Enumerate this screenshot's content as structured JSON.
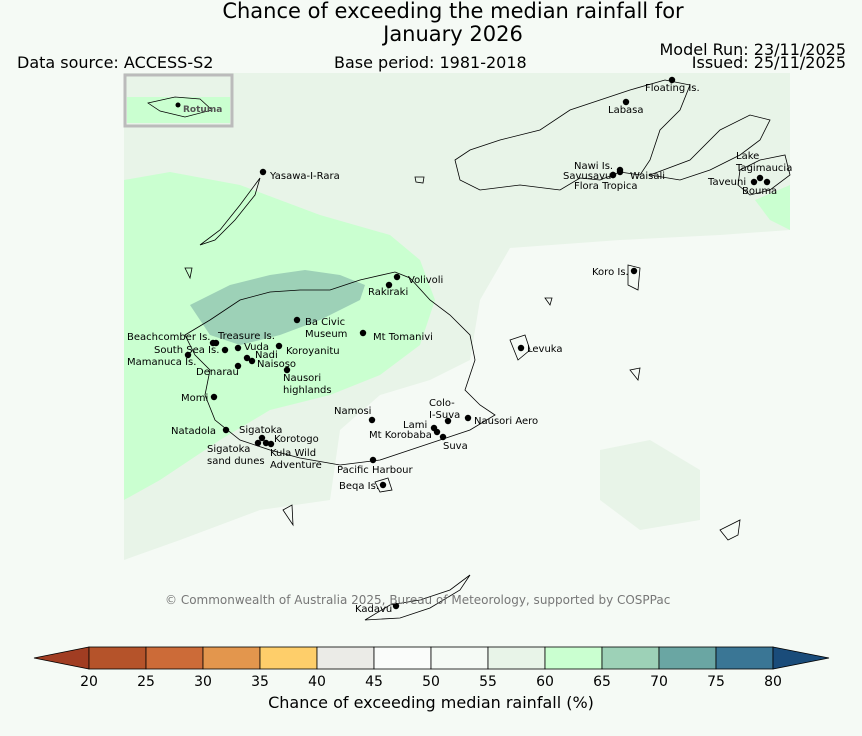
{
  "title_line1": "Chance of exceeding the median rainfall for",
  "title_line2": "January 2026",
  "data_source": "Data source: ACCESS-S2",
  "base_period": "Base period: 1981-2018",
  "model_run": "Model Run: 23/11/2025",
  "issued": "Issued: 25/11/2025",
  "copyright": "© Commonwealth of Australia 2025, Bureau of Meteorology, supported by COSPPac",
  "inset_label": "Rotuma",
  "colorbar": {
    "label": "Chance of exceeding median rainfall (%)",
    "ticks": [
      "20",
      "25",
      "30",
      "35",
      "40",
      "45",
      "50",
      "55",
      "60",
      "65",
      "70",
      "75",
      "80"
    ],
    "colors": [
      "#a13d22",
      "#b5532a",
      "#cc6b38",
      "#e3964d",
      "#fece6a",
      "#ebebe7",
      "#fafcfa",
      "#f5faf5",
      "#e8f4e8",
      "#caffd0",
      "#9dd1b7",
      "#6aa6a3",
      "#3a7695",
      "#1a4c7a"
    ]
  },
  "places": [
    {
      "name": "Floating Is."
    },
    {
      "name": "Labasa"
    },
    {
      "name": "Yasawa-I-Rara"
    },
    {
      "name": "Nawi Is."
    },
    {
      "name": "Savusavu"
    },
    {
      "name": "Waisali"
    },
    {
      "name": "Flora Tropica"
    },
    {
      "name": "Lake Tagimaucia"
    },
    {
      "name": "Taveuni"
    },
    {
      "name": "Bouma"
    },
    {
      "name": "Volivoli"
    },
    {
      "name": "Rakiraki"
    },
    {
      "name": "Koro Is."
    },
    {
      "name": "Ba Civic Museum"
    },
    {
      "name": "Mt Tomanivi"
    },
    {
      "name": "Beachcomber Is."
    },
    {
      "name": "Treasure Is."
    },
    {
      "name": "South Sea Is."
    },
    {
      "name": "Vuda"
    },
    {
      "name": "Koroyanitu"
    },
    {
      "name": "Nadi"
    },
    {
      "name": "Mamanuca Is."
    },
    {
      "name": "Denarau"
    },
    {
      "name": "Naisoso"
    },
    {
      "name": "Nausori highlands"
    },
    {
      "name": "Levuka"
    },
    {
      "name": "Momi"
    },
    {
      "name": "Namosi"
    },
    {
      "name": "Colo-I-Suva"
    },
    {
      "name": "Natadola"
    },
    {
      "name": "Sigatoka"
    },
    {
      "name": "Korotogo"
    },
    {
      "name": "Lami"
    },
    {
      "name": "Nausori Aero"
    },
    {
      "name": "Mt Korobaba"
    },
    {
      "name": "Suva"
    },
    {
      "name": "Sigatoka sand dunes"
    },
    {
      "name": "Kula Wild Adventure"
    },
    {
      "name": "Pacific Harbour"
    },
    {
      "name": "Beqa Is."
    },
    {
      "name": "Kadavu"
    }
  ]
}
